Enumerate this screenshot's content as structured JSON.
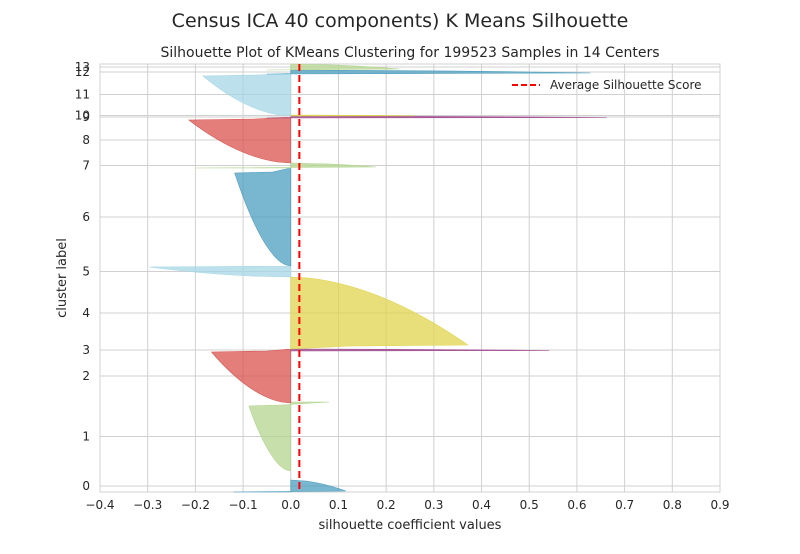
{
  "figure": {
    "suptitle": "Census ICA 40 components) K Means Silhouette"
  },
  "chart_data": {
    "type": "silhouette",
    "title": "Silhouette Plot of KMeans Clustering for 199523 Samples in 14 Centers",
    "xlabel": "silhouette coefficient values",
    "ylabel": "cluster label",
    "xlim": [
      -0.4,
      0.9
    ],
    "x_ticks": [
      "−0.4",
      "−0.3",
      "−0.2",
      "−0.1",
      "0.0",
      "0.1",
      "0.2",
      "0.3",
      "0.4",
      "0.5",
      "0.6",
      "0.7",
      "0.8",
      "0.9"
    ],
    "grid": true,
    "legend_position": "top-right",
    "average_score": 0.018,
    "legend": {
      "label": "Average Silhouette Score",
      "color": "#ff0000",
      "style": "dashed"
    },
    "palette": {
      "blue": "#4c9ebf",
      "green": "#b3d48f",
      "red": "#d9534f",
      "purple": "#a04a8f",
      "yellow": "#e0d44d",
      "lightblue": "#a6d7e6"
    },
    "clusters": [
      {
        "label": "0",
        "color": "#4c9ebf",
        "y_range": [
          480,
          492
        ],
        "min": -0.12,
        "max": 0.12
      },
      {
        "label": "1",
        "color": "#b3d48f",
        "y_range": [
          402,
          471
        ],
        "min": -0.09,
        "max": 0.08
      },
      {
        "label": "2",
        "color": "#d9534f",
        "y_range": [
          349,
          403
        ],
        "min": -0.17,
        "max": 0.0
      },
      {
        "label": "3",
        "color": "#a04a8f",
        "y_range": [
          349,
          351
        ],
        "min": 0.0,
        "max": 0.63
      },
      {
        "label": "4",
        "color": "#e0d44d",
        "y_range": [
          277,
          349
        ],
        "min": 0.0,
        "max": 0.38
      },
      {
        "label": "5",
        "color": "#a6d7e6",
        "y_range": [
          266,
          277
        ],
        "min": -0.31,
        "max": 0.0
      },
      {
        "label": "6",
        "color": "#4c9ebf",
        "y_range": [
          168,
          266
        ],
        "min": -0.12,
        "max": 0.0
      },
      {
        "label": "7",
        "color": "#b3d48f",
        "y_range": [
          163,
          168
        ],
        "min": -0.2,
        "max": 0.2
      },
      {
        "label": "8",
        "color": "#d9534f",
        "y_range": [
          117,
          163
        ],
        "min": -0.22,
        "max": 0.0
      },
      {
        "label": "9",
        "color": "#a04a8f",
        "y_range": [
          116,
          118
        ],
        "min": -0.05,
        "max": 0.77
      },
      {
        "label": "10",
        "color": "#e0d44d",
        "y_range": [
          115,
          116
        ],
        "min": 0.0,
        "max": 0.3
      },
      {
        "label": "11",
        "color": "#a6d7e6",
        "y_range": [
          73,
          116
        ],
        "min": -0.19,
        "max": 0.0
      },
      {
        "label": "12",
        "color": "#4c9ebf",
        "y_range": [
          70,
          74
        ],
        "min": -0.05,
        "max": 0.73
      },
      {
        "label": "13",
        "color": "#b3d48f",
        "y_range": [
          64,
          70
        ],
        "min": -0.05,
        "max": 0.25
      }
    ]
  }
}
